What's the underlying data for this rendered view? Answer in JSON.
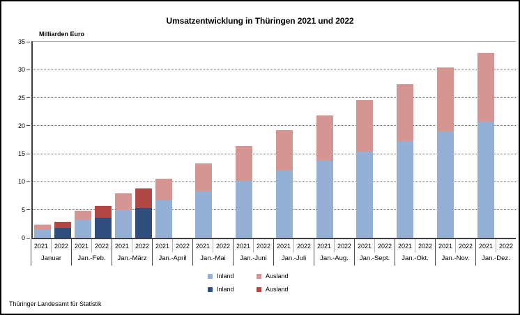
{
  "chart_data": {
    "type": "bar",
    "subtype": "grouped-stacked-columns",
    "title": "Umsatzentwicklung in Thüringen 2021 und 2022",
    "unit_label": "Milliarden Euro",
    "ylabel": "Milliarden Euro",
    "ylim": [
      0,
      35
    ],
    "ytick_step": 5,
    "grid": "horizontal dotted",
    "legend_position": "bottom-center",
    "categories": [
      "Januar",
      "Jan.-Feb.",
      "Jan.-März",
      "Jan.-April",
      "Jan.-Mai",
      "Jan.-Juni",
      "Jan.-Juli",
      "Jan.-Aug.",
      "Jan.-Sept.",
      "Jan.-Okt.",
      "Jan.-Nov.",
      "Jan.-Dez."
    ],
    "year_labels": [
      "2021",
      "2022"
    ],
    "series": [
      {
        "name": "Inland",
        "year": "2021",
        "color": "#94B0D5",
        "values": [
          1.5,
          3.2,
          5.0,
          6.7,
          8.3,
          10.2,
          12.0,
          13.8,
          15.4,
          17.3,
          19.0,
          20.7
        ]
      },
      {
        "name": "Ausland",
        "year": "2021",
        "color": "#D59593",
        "values": [
          0.85,
          1.7,
          3.0,
          3.9,
          5.0,
          6.2,
          7.2,
          8.1,
          9.2,
          10.1,
          11.4,
          12.3
        ]
      },
      {
        "name": "Inland",
        "year": "2022",
        "color": "#2F4E7C",
        "values": [
          1.75,
          3.55,
          5.4,
          null,
          null,
          null,
          null,
          null,
          null,
          null,
          null,
          null
        ]
      },
      {
        "name": "Ausland",
        "year": "2022",
        "color": "#B04744",
        "values": [
          1.1,
          2.15,
          3.4,
          null,
          null,
          null,
          null,
          null,
          null,
          null,
          null,
          null
        ]
      }
    ],
    "legend": [
      {
        "label": "Inland",
        "color": "#94B0D5"
      },
      {
        "label": "Ausland",
        "color": "#D59593"
      },
      {
        "label": "Inland",
        "color": "#2F4E7C"
      },
      {
        "label": "Ausland",
        "color": "#B04744"
      }
    ]
  },
  "footer": {
    "source": "Thüringer Landesamt für Statistik"
  }
}
